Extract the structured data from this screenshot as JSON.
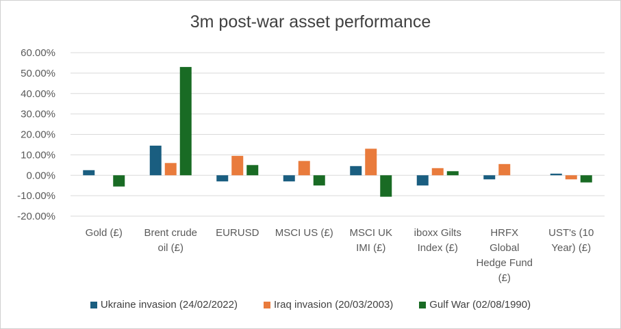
{
  "chart_data": {
    "type": "bar",
    "title": "3m post-war asset performance",
    "categories": [
      [
        "Gold (£)"
      ],
      [
        "Brent crude",
        "oil (£)"
      ],
      [
        "EURUSD"
      ],
      [
        "MSCI US (£)"
      ],
      [
        "MSCI UK",
        "IMI (£)"
      ],
      [
        "iboxx Gilts",
        "Index (£)"
      ],
      [
        "HRFX",
        "Global",
        "Hedge Fund",
        "(£)"
      ],
      [
        "UST's (10",
        "Year) (£)"
      ]
    ],
    "series": [
      {
        "name": "Ukraine invasion (24/02/2022)",
        "color": "#1a5e80",
        "values": [
          2.5,
          14.5,
          -3.0,
          -3.0,
          4.5,
          -5.0,
          -2.0,
          0.8
        ]
      },
      {
        "name": "Iraq invasion (20/03/2003)",
        "color": "#e97b3c",
        "values": [
          0,
          6.0,
          9.5,
          7.0,
          13.0,
          3.5,
          5.5,
          -2.0
        ]
      },
      {
        "name": "Gulf War (02/08/1990)",
        "color": "#196b24",
        "values": [
          -5.5,
          53.0,
          5.0,
          -5.0,
          -10.5,
          2.0,
          0,
          -3.5
        ]
      }
    ],
    "ylim": [
      -20,
      60
    ],
    "yticks": [
      -20,
      -10,
      0,
      10,
      20,
      30,
      40,
      50,
      60
    ],
    "ytick_labels": [
      "-20.00%",
      "-10.00%",
      "0.00%",
      "10.00%",
      "20.00%",
      "30.00%",
      "40.00%",
      "50.00%",
      "60.00%"
    ],
    "xlabel": "",
    "ylabel": "",
    "grid": true,
    "legend": "bottom"
  }
}
